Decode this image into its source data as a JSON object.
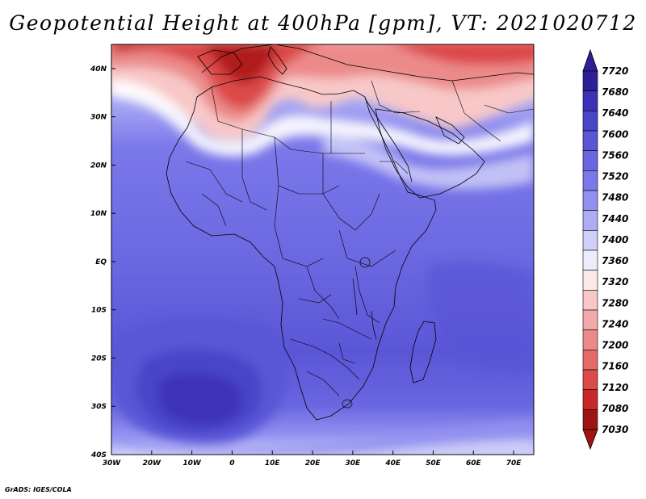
{
  "title": "Geopotential Height at 400hPa [gpm], VT: 2021020712",
  "credit": "GrADS: IGES/COLA",
  "map": {
    "projection": "lat-lon",
    "lon_range": [
      -30,
      75
    ],
    "lat_range": [
      -40,
      45
    ],
    "lon_ticks": [
      {
        "value": -30,
        "label": "30W"
      },
      {
        "value": -20,
        "label": "20W"
      },
      {
        "value": -10,
        "label": "10W"
      },
      {
        "value": 0,
        "label": "0"
      },
      {
        "value": 10,
        "label": "10E"
      },
      {
        "value": 20,
        "label": "20E"
      },
      {
        "value": 30,
        "label": "30E"
      },
      {
        "value": 40,
        "label": "40E"
      },
      {
        "value": 50,
        "label": "50E"
      },
      {
        "value": 60,
        "label": "60E"
      },
      {
        "value": 70,
        "label": "70E"
      }
    ],
    "lat_ticks": [
      {
        "value": 40,
        "label": "40N"
      },
      {
        "value": 30,
        "label": "30N"
      },
      {
        "value": 20,
        "label": "20N"
      },
      {
        "value": 10,
        "label": "10N"
      },
      {
        "value": 0,
        "label": "EQ"
      },
      {
        "value": -10,
        "label": "10S"
      },
      {
        "value": -20,
        "label": "20S"
      },
      {
        "value": -30,
        "label": "30S"
      },
      {
        "value": -40,
        "label": "40S"
      }
    ]
  },
  "colorbar": {
    "orientation": "vertical",
    "labels_top_to_bottom": [
      "7720",
      "7680",
      "7640",
      "7600",
      "7560",
      "7520",
      "7480",
      "7440",
      "7400",
      "7360",
      "7320",
      "7280",
      "7240",
      "7200",
      "7160",
      "7120",
      "7080",
      "7030"
    ],
    "colors_top_to_bottom": [
      "#2e1f96",
      "#3c32b8",
      "#4a44c8",
      "#5a56d6",
      "#6a66e0",
      "#7b78ea",
      "#9290f0",
      "#aeadf4",
      "#cfcff8",
      "#ececfc",
      "#fde8e8",
      "#f8c8c8",
      "#f2a9a9",
      "#ec8a8a",
      "#e56a6a",
      "#dc4a4a",
      "#c82828",
      "#9e1414"
    ]
  },
  "field_colors": {
    "deep_low": "#9e1414",
    "low": "#dc4a4a",
    "mid_low": "#f2a9a9",
    "neutral": "#ffffff",
    "mid_high": "#aeadf4",
    "high": "#6a66e0",
    "deep_high": "#3c32b8"
  }
}
